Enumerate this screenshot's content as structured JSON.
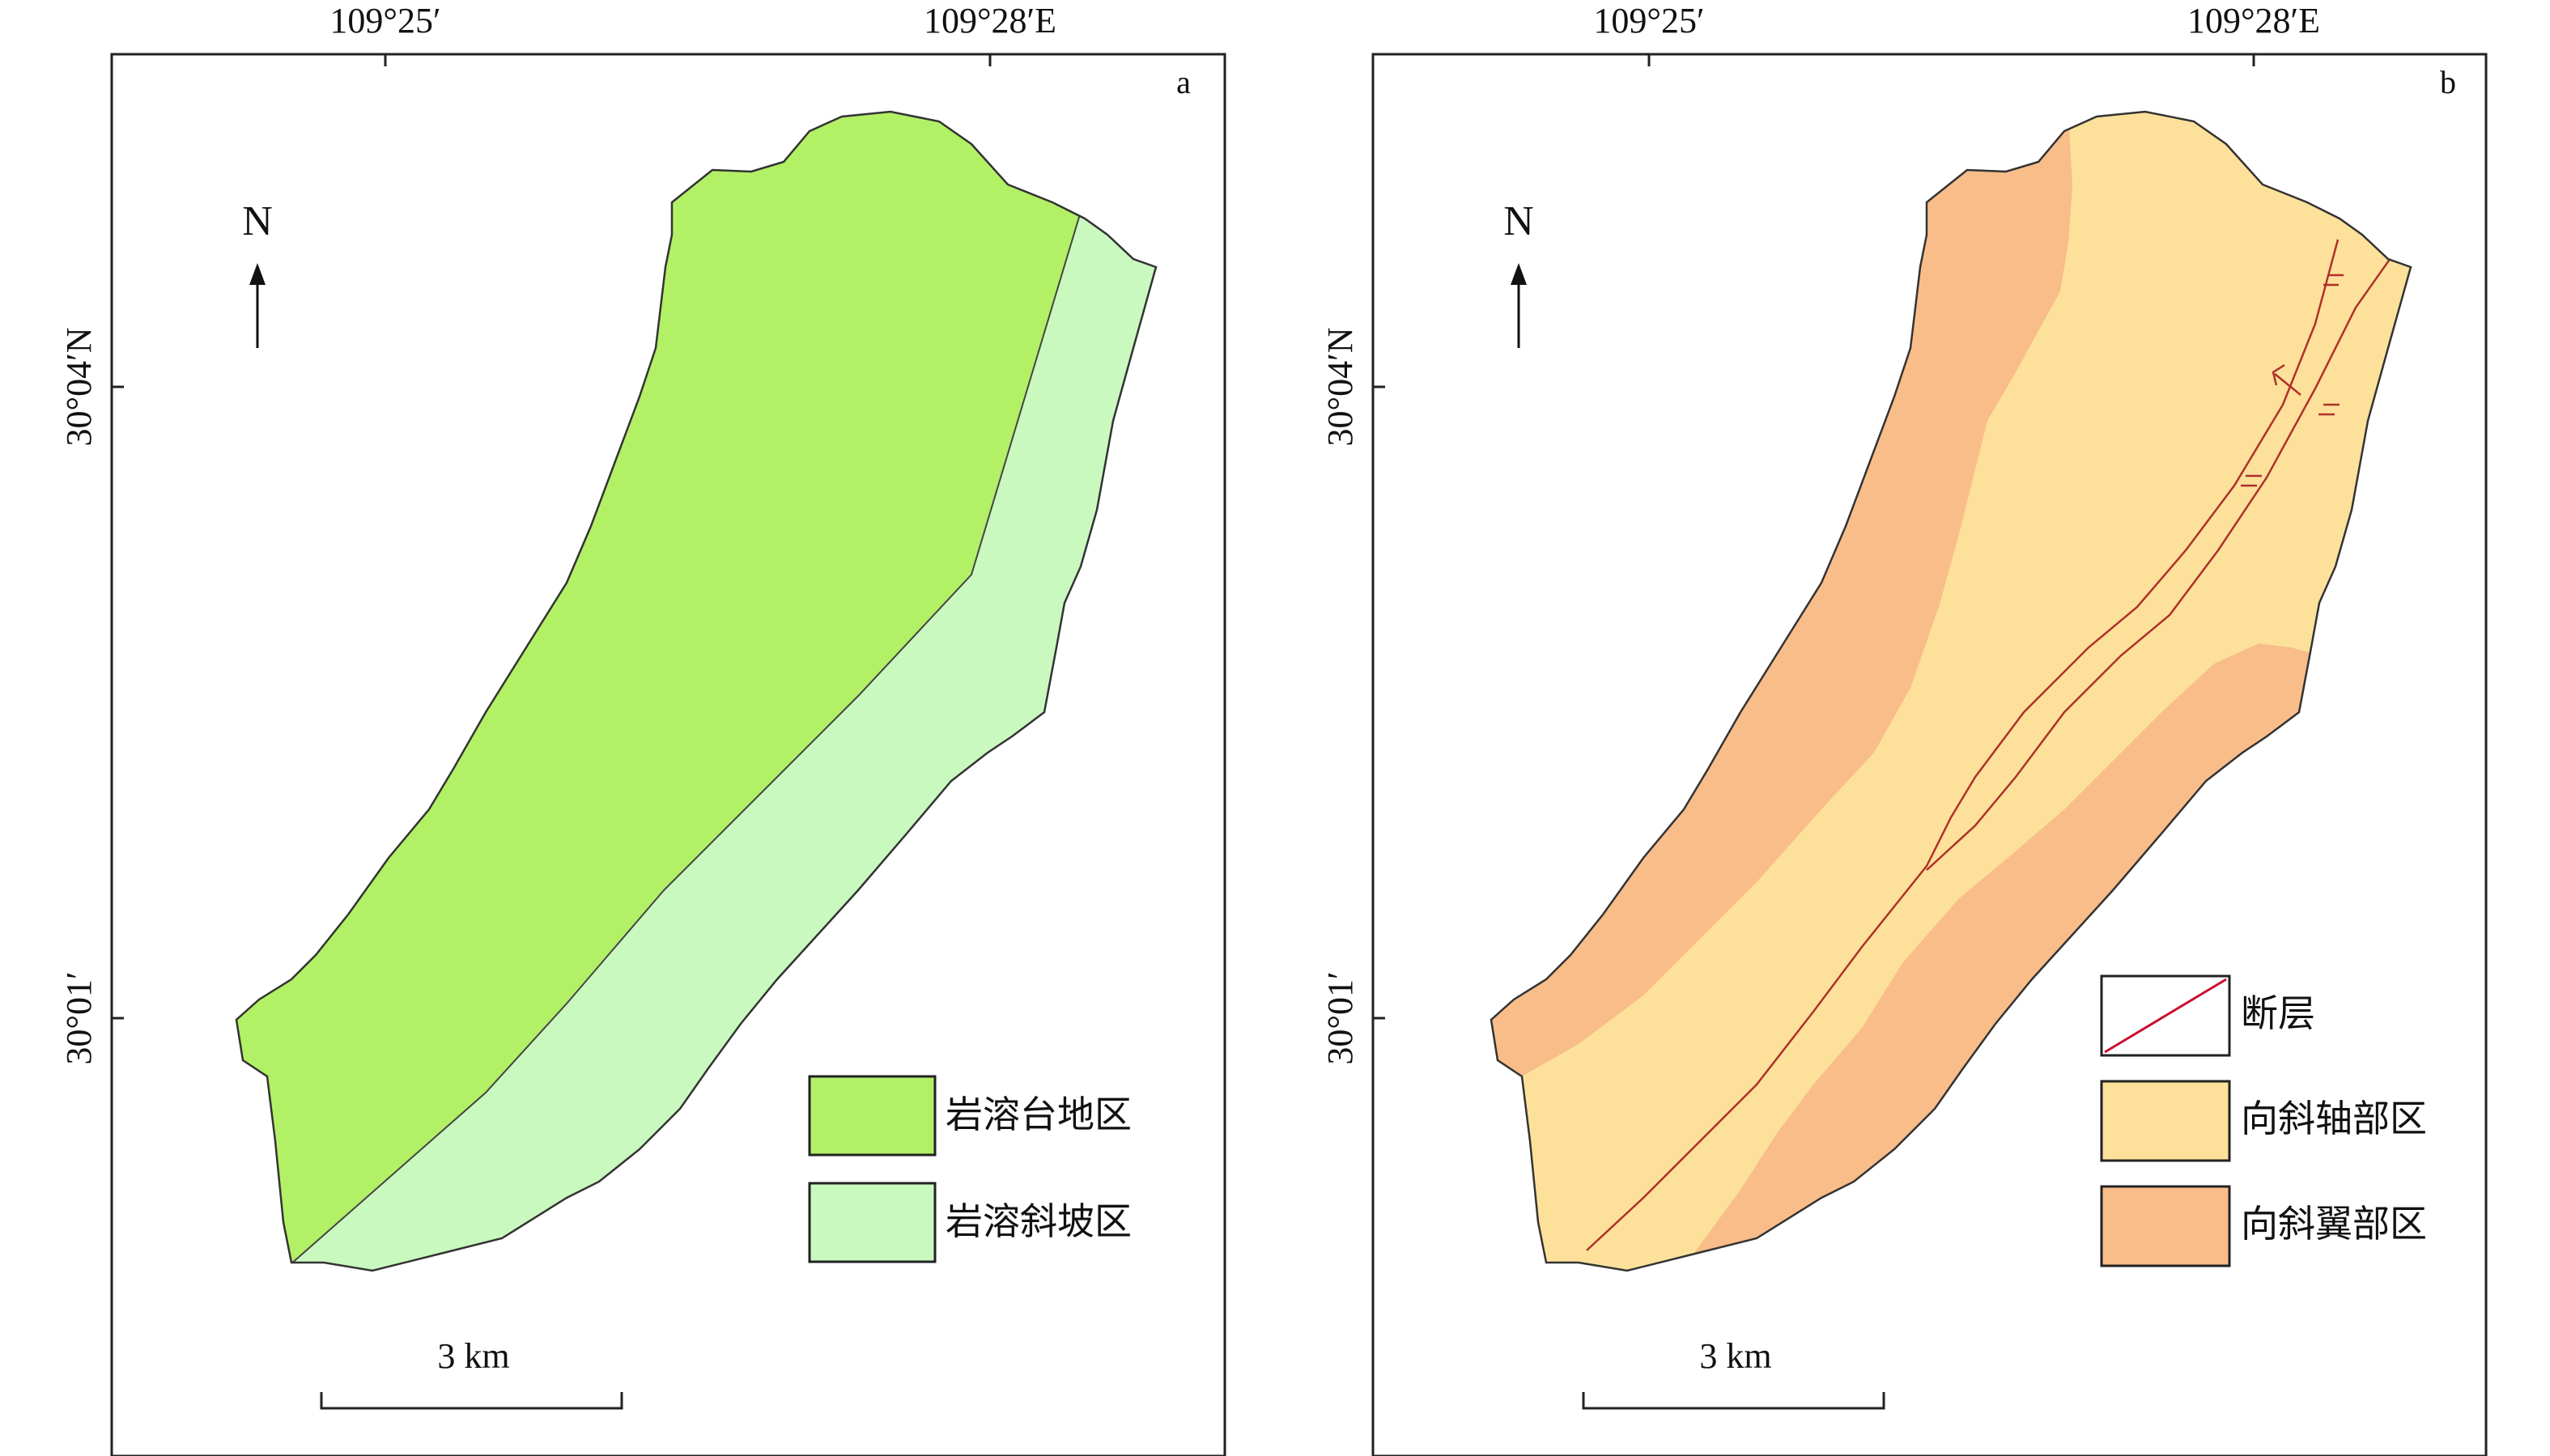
{
  "panels": [
    {
      "id": "a",
      "panel_label": "a",
      "top_ticks": [
        "109°25′",
        "109°28′E"
      ],
      "left_ticks": [
        "30°04′N",
        "30°01′"
      ],
      "north_label": "N",
      "scale_label": "3 km",
      "legend": [
        {
          "label": "岩溶台地区",
          "color": "#b2f066"
        },
        {
          "label": "岩溶斜坡区",
          "color": "#c9f9bf"
        }
      ]
    },
    {
      "id": "b",
      "panel_label": "b",
      "top_ticks": [
        "109°25′",
        "109°28′E"
      ],
      "left_ticks": [
        "30°04′N",
        "30°01′"
      ],
      "north_label": "N",
      "scale_label": "3 km",
      "legend": [
        {
          "label": "断层",
          "color": "#c8102e",
          "kind": "line"
        },
        {
          "label": "向斜轴部区",
          "color": "#fde19b"
        },
        {
          "label": "向斜翼部区",
          "color": "#f9bd8a"
        }
      ]
    }
  ],
  "colors": {
    "plateau": "#b2f066",
    "slope": "#c9f9bf",
    "axis_zone": "#fde19b",
    "limb_zone": "#f9bd8a",
    "fault": "#b0302a",
    "outline": "#333333"
  }
}
